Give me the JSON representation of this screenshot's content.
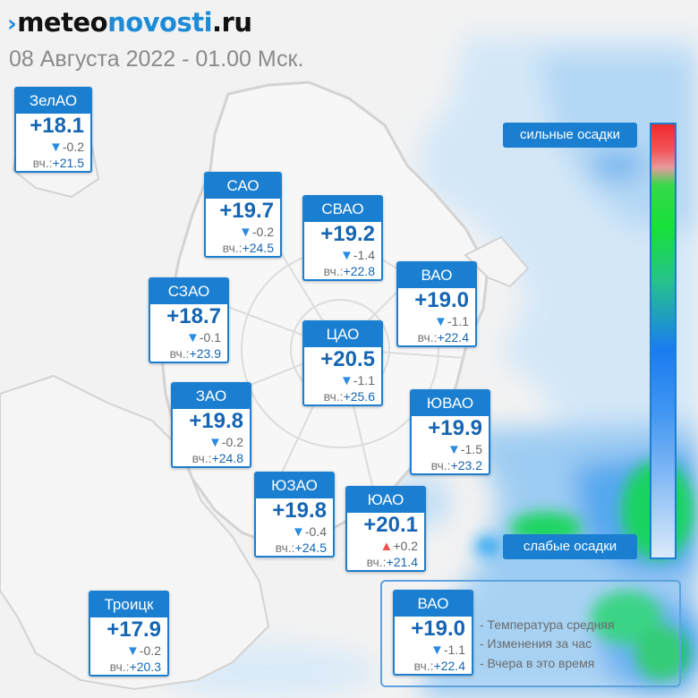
{
  "header": {
    "logo_mark": "›",
    "logo_part1": "meteo",
    "logo_part2": "novosti",
    "logo_part3": ".ru",
    "subtitle": "08 Августа 2022 - 01.00 Мск."
  },
  "colors": {
    "card_header": "#1a7fd0",
    "temperature_text": "#1565b3",
    "arrow_down": "#2a8be0",
    "arrow_up": "#ef5350",
    "precip_light": "#dbeafb",
    "precip_heavy": "#f0282c"
  },
  "yesterday_prefix": "вч.:",
  "districts": [
    {
      "name": "ЗелАО",
      "temp": "+18.1",
      "arrow": "down",
      "change": "-0.2",
      "yesterday": "+21.5"
    },
    {
      "name": "САО",
      "temp": "+19.7",
      "arrow": "down",
      "change": "-0.2",
      "yesterday": "+24.5"
    },
    {
      "name": "СВАО",
      "temp": "+19.2",
      "arrow": "down",
      "change": "-1.4",
      "yesterday": "+22.8"
    },
    {
      "name": "ВАО",
      "temp": "+19.0",
      "arrow": "down",
      "change": "-1.1",
      "yesterday": "+22.4"
    },
    {
      "name": "СЗАО",
      "temp": "+18.7",
      "arrow": "down",
      "change": "-0.1",
      "yesterday": "+23.9"
    },
    {
      "name": "ЦАО",
      "temp": "+20.5",
      "arrow": "down",
      "change": "-1.1",
      "yesterday": "+25.6"
    },
    {
      "name": "ЗАО",
      "temp": "+19.8",
      "arrow": "down",
      "change": "-0.2",
      "yesterday": "+24.8"
    },
    {
      "name": "ЮВАО",
      "temp": "+19.9",
      "arrow": "down",
      "change": "-1.5",
      "yesterday": "+23.2"
    },
    {
      "name": "ЮЗАО",
      "temp": "+19.8",
      "arrow": "down",
      "change": "-0.4",
      "yesterday": "+24.5"
    },
    {
      "name": "ЮАО",
      "temp": "+20.1",
      "arrow": "up",
      "change": "+0.2",
      "yesterday": "+21.4"
    },
    {
      "name": "Троицк",
      "temp": "+17.9",
      "arrow": "down",
      "change": "-0.2",
      "yesterday": "+20.3"
    }
  ],
  "precip_scale": {
    "top_label": "сильные осадки",
    "bottom_label": "слабые осадки"
  },
  "legend": {
    "sample": {
      "name": "ВАО",
      "temp": "+19.0",
      "arrow": "down",
      "change": "-1.1",
      "yesterday": "+22.4"
    },
    "line1": "- Температура средняя",
    "line2": "- Изменения за час",
    "line3": "- Вчера в это время"
  }
}
